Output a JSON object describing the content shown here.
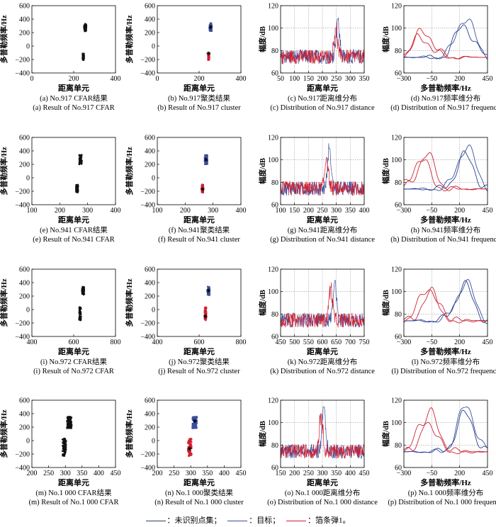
{
  "figure": {
    "legend": [
      {
        "label": "：未识别点集；",
        "color": "#2f3f5f"
      },
      {
        "label": "：目标；",
        "color": "#3a4fa0"
      },
      {
        "label": "：箔条弹1。",
        "color": "#d02030"
      }
    ]
  },
  "chart_data": [
    {
      "type": "scatter",
      "caption_cn": "(a) No.917 CFAR结果",
      "caption_en": "(a) Result of No.917 CFAR",
      "xlabel": "距离单元",
      "ylabel": "多普勒频率/Hz",
      "xlim": [
        0,
        400
      ],
      "ylim": [
        -400,
        600
      ],
      "xticks": [
        "0",
        "200",
        "400"
      ],
      "yticks": [
        "−400",
        "−200",
        "0",
        "200",
        "400",
        "600"
      ],
      "clusters": [
        {
          "x": 255,
          "y_min": 220,
          "y_max": 330,
          "w": 12,
          "role": "unrecognized"
        },
        {
          "x": 245,
          "y_min": -210,
          "y_max": -110,
          "w": 8,
          "role": "unrecognized"
        }
      ]
    },
    {
      "type": "scatter",
      "caption_cn": "(b) No.917聚类结果",
      "caption_en": "(b) Result of No.917 cluster",
      "xlabel": "距离单元",
      "ylabel": "多普勒频率/Hz",
      "xlim": [
        0,
        400
      ],
      "ylim": [
        -400,
        600
      ],
      "xticks": [
        "0",
        "200",
        "400"
      ],
      "yticks": [
        "−400",
        "−200",
        "0",
        "200",
        "400",
        "600"
      ],
      "clusters": [
        {
          "x": 255,
          "y_min": 220,
          "y_max": 340,
          "w": 12,
          "role": "target",
          "center_y": 280
        },
        {
          "x": 245,
          "y_min": -210,
          "y_max": -100,
          "w": 8,
          "role": "chaff",
          "center_y": -110
        }
      ]
    },
    {
      "type": "line",
      "caption_cn": "(c) No.917距离维分布",
      "caption_en": "(c) Distribution of No.917 distance",
      "xlabel": "距离单元",
      "ylabel": "幅度/dB",
      "xlim": [
        50,
        350
      ],
      "ylim": [
        60,
        120
      ],
      "xticks": [
        "50",
        "100",
        "150",
        "200",
        "250",
        "300",
        "350"
      ],
      "yticks": [
        "60",
        "80",
        "100",
        "120"
      ],
      "peaks": [
        {
          "series": "target",
          "x": 255,
          "height": 108
        },
        {
          "series": "chaff",
          "x": 248,
          "height": 100
        }
      ]
    },
    {
      "type": "line",
      "caption_cn": "(d) No.917频率维分布",
      "caption_en": "(d) Distribution of No.917 frequency",
      "xlabel": "多普勒频率/Hz",
      "ylabel": "幅度/dB",
      "xlim": [
        -300,
        450
      ],
      "ylim": [
        60,
        120
      ],
      "xticks": [
        "−300",
        "−50",
        "200",
        "450"
      ],
      "yticks": [
        "60",
        "80",
        "100",
        "120"
      ],
      "peaks": [
        {
          "series": "target",
          "x": 250,
          "height": 110
        },
        {
          "series": "target",
          "x": 240,
          "height": 103
        },
        {
          "series": "chaff",
          "x": -120,
          "height": 98
        },
        {
          "series": "chaff",
          "x": -140,
          "height": 92
        }
      ]
    },
    {
      "type": "scatter",
      "caption_cn": "(e) No.941 CFAR结果",
      "caption_en": "(e) Result of No.941 CFAR",
      "xlabel": "距离单元",
      "ylabel": "多普勒频率/Hz",
      "xlim": [
        100,
        400
      ],
      "ylim": [
        -400,
        600
      ],
      "xticks": [
        "100",
        "200",
        "300",
        "400"
      ],
      "yticks": [
        "−400",
        "−200",
        "0",
        "200",
        "400",
        "600"
      ],
      "clusters": [
        {
          "x": 275,
          "y_min": 200,
          "y_max": 340,
          "w": 10,
          "role": "unrecognized"
        },
        {
          "x": 262,
          "y_min": -220,
          "y_max": -100,
          "w": 8,
          "role": "unrecognized"
        }
      ]
    },
    {
      "type": "scatter",
      "caption_cn": "(f) No.941聚类结果",
      "caption_en": "(f) Result of No.941 cluster",
      "xlabel": "距离单元",
      "ylabel": "多普勒频率/Hz",
      "xlim": [
        100,
        400
      ],
      "ylim": [
        -400,
        600
      ],
      "xticks": [
        "100",
        "200",
        "300",
        "400"
      ],
      "yticks": [
        "−400",
        "−200",
        "0",
        "200",
        "400",
        "600"
      ],
      "clusters": [
        {
          "x": 275,
          "y_min": 200,
          "y_max": 340,
          "w": 10,
          "role": "target",
          "center_y": 270
        },
        {
          "x": 262,
          "y_min": -220,
          "y_max": -100,
          "w": 8,
          "role": "chaff",
          "center_y": -170
        }
      ]
    },
    {
      "type": "line",
      "caption_cn": "(g) No.941距离维分布",
      "caption_en": "(g) Distribution of No.941 distance",
      "xlabel": "距离单元",
      "ylabel": "幅度/dB",
      "xlim": [
        100,
        400
      ],
      "ylim": [
        60,
        120
      ],
      "xticks": [
        "100",
        "150",
        "200",
        "250",
        "300",
        "350",
        "400"
      ],
      "yticks": [
        "60",
        "80",
        "100",
        "120"
      ],
      "peaks": [
        {
          "series": "target",
          "x": 275,
          "height": 110
        },
        {
          "series": "chaff",
          "x": 265,
          "height": 102
        }
      ]
    },
    {
      "type": "line",
      "caption_cn": "(h) No.941频率维分布",
      "caption_en": "(h) Distribution of No.941 frequency",
      "xlabel": "多普勒频率/Hz",
      "ylabel": "幅度/dB",
      "xlim": [
        -300,
        450
      ],
      "ylim": [
        60,
        120
      ],
      "xticks": [
        "−300",
        "−50",
        "200",
        "450"
      ],
      "yticks": [
        "60",
        "80",
        "100",
        "120"
      ],
      "peaks": [
        {
          "series": "target",
          "x": 260,
          "height": 112
        },
        {
          "series": "target",
          "x": 250,
          "height": 103
        },
        {
          "series": "chaff",
          "x": -100,
          "height": 104
        },
        {
          "series": "chaff",
          "x": -150,
          "height": 100
        }
      ]
    },
    {
      "type": "scatter",
      "caption_cn": "(i) No.972 CFAR结果",
      "caption_en": "(i) Result of No.972 CFAR",
      "xlabel": "距离单元",
      "ylabel": "多普勒频率/Hz",
      "xlim": [
        400,
        800
      ],
      "ylim": [
        -400,
        600
      ],
      "xticks": [
        "400",
        "600",
        "800"
      ],
      "yticks": [
        "−400",
        "−200",
        "0",
        "200",
        "400",
        "600"
      ],
      "clusters": [
        {
          "x": 645,
          "y_min": 210,
          "y_max": 340,
          "w": 12,
          "role": "unrecognized"
        },
        {
          "x": 630,
          "y_min": -160,
          "y_max": 40,
          "w": 10,
          "role": "unrecognized"
        }
      ]
    },
    {
      "type": "scatter",
      "caption_cn": "(j) No.972聚类结果",
      "caption_en": "(j) Result of No.972 cluster",
      "xlabel": "距离单元",
      "ylabel": "多普勒频率/Hz",
      "xlim": [
        400,
        800
      ],
      "ylim": [
        -400,
        600
      ],
      "xticks": [
        "400",
        "600",
        "800"
      ],
      "yticks": [
        "−400",
        "−200",
        "0",
        "200",
        "400",
        "600"
      ],
      "clusters": [
        {
          "x": 645,
          "y_min": 210,
          "y_max": 340,
          "w": 12,
          "role": "target",
          "center_y": 280
        },
        {
          "x": 630,
          "y_min": -160,
          "y_max": 40,
          "w": 10,
          "role": "chaff",
          "center_y": -100
        }
      ]
    },
    {
      "type": "line",
      "caption_cn": "(k) No.972距离维分布",
      "caption_en": "(k) Distribution of No.972 distance",
      "xlabel": "距离单元",
      "ylabel": "幅度/dB",
      "xlim": [
        450,
        750
      ],
      "ylim": [
        60,
        120
      ],
      "xticks": [
        "450",
        "500",
        "550",
        "600",
        "650",
        "700",
        "750"
      ],
      "yticks": [
        "60",
        "80",
        "100",
        "120"
      ],
      "peaks": [
        {
          "series": "target",
          "x": 645,
          "height": 110
        },
        {
          "series": "chaff",
          "x": 630,
          "height": 104
        }
      ]
    },
    {
      "type": "line",
      "caption_cn": "(l) No.972频率维分布",
      "caption_en": "(l) Distribution of No.972 frequency",
      "xlabel": "多普勒频率/Hz",
      "ylabel": "幅度/dB",
      "xlim": [
        -300,
        450
      ],
      "ylim": [
        60,
        120
      ],
      "xticks": [
        "−300",
        "−50",
        "200",
        "450"
      ],
      "yticks": [
        "60",
        "80",
        "100",
        "120"
      ],
      "peaks": [
        {
          "series": "target",
          "x": 250,
          "height": 108
        },
        {
          "series": "target",
          "x": 240,
          "height": 105
        },
        {
          "series": "chaff",
          "x": -80,
          "height": 104
        },
        {
          "series": "chaff",
          "x": -60,
          "height": 98
        }
      ]
    },
    {
      "type": "scatter",
      "caption_cn": "(m) No.1 000 CFAR结果",
      "caption_en": "(m) Result of No.1 000 CFAR",
      "xlabel": "距离单元",
      "ylabel": "多普勒频率/Hz",
      "xlim": [
        200,
        450
      ],
      "ylim": [
        -400,
        600
      ],
      "xticks": [
        "200",
        "250",
        "300",
        "350",
        "400",
        "450"
      ],
      "yticks": [
        "−400",
        "−200",
        "0",
        "200",
        "400",
        "600"
      ],
      "clusters": [
        {
          "x": 312,
          "y_min": 180,
          "y_max": 360,
          "w": 12,
          "role": "unrecognized"
        },
        {
          "x": 297,
          "y_min": -230,
          "y_max": 30,
          "w": 10,
          "role": "unrecognized"
        }
      ]
    },
    {
      "type": "scatter",
      "caption_cn": "(n) No.1 000聚类结果",
      "caption_en": "(n) Result of No.1 000 cluster",
      "xlabel": "距离单元",
      "ylabel": "多普勒频率/Hz",
      "xlim": [
        200,
        450
      ],
      "ylim": [
        -400,
        600
      ],
      "xticks": [
        "200",
        "250",
        "300",
        "350",
        "400",
        "450"
      ],
      "yticks": [
        "−400",
        "−200",
        "0",
        "200",
        "400",
        "600"
      ],
      "clusters": [
        {
          "x": 312,
          "y_min": 180,
          "y_max": 360,
          "w": 12,
          "role": "target",
          "center_y": 290
        },
        {
          "x": 297,
          "y_min": -230,
          "y_max": 30,
          "w": 10,
          "role": "chaff",
          "center_y": -120
        }
      ]
    },
    {
      "type": "line",
      "caption_cn": "(o) No.1 000距离维分布",
      "caption_en": "(o) Distribution of No.1 000 distance",
      "xlabel": "距离单元",
      "ylabel": "幅度/dB",
      "xlim": [
        150,
        450
      ],
      "ylim": [
        60,
        120
      ],
      "xticks": [
        "150",
        "200",
        "250",
        "300",
        "350",
        "400",
        "450"
      ],
      "yticks": [
        "60",
        "80",
        "100",
        "120"
      ],
      "peaks": [
        {
          "series": "target",
          "x": 305,
          "height": 114
        },
        {
          "series": "chaff",
          "x": 295,
          "height": 108
        }
      ]
    },
    {
      "type": "line",
      "caption_cn": "(p) No.1 000频率维分布",
      "caption_en": "(p) Distribution of No.1 000 frequency",
      "xlabel": "多普勒频率/Hz",
      "ylabel": "幅度/dB",
      "xlim": [
        -300,
        450
      ],
      "ylim": [
        60,
        120
      ],
      "xticks": [
        "−300",
        "−50",
        "200",
        "450"
      ],
      "yticks": [
        "60",
        "80",
        "100",
        "120"
      ],
      "peaks": [
        {
          "series": "target",
          "x": 260,
          "height": 114
        },
        {
          "series": "target",
          "x": 250,
          "height": 107
        },
        {
          "series": "chaff",
          "x": -60,
          "height": 107
        },
        {
          "series": "chaff",
          "x": -100,
          "height": 103
        }
      ]
    }
  ]
}
